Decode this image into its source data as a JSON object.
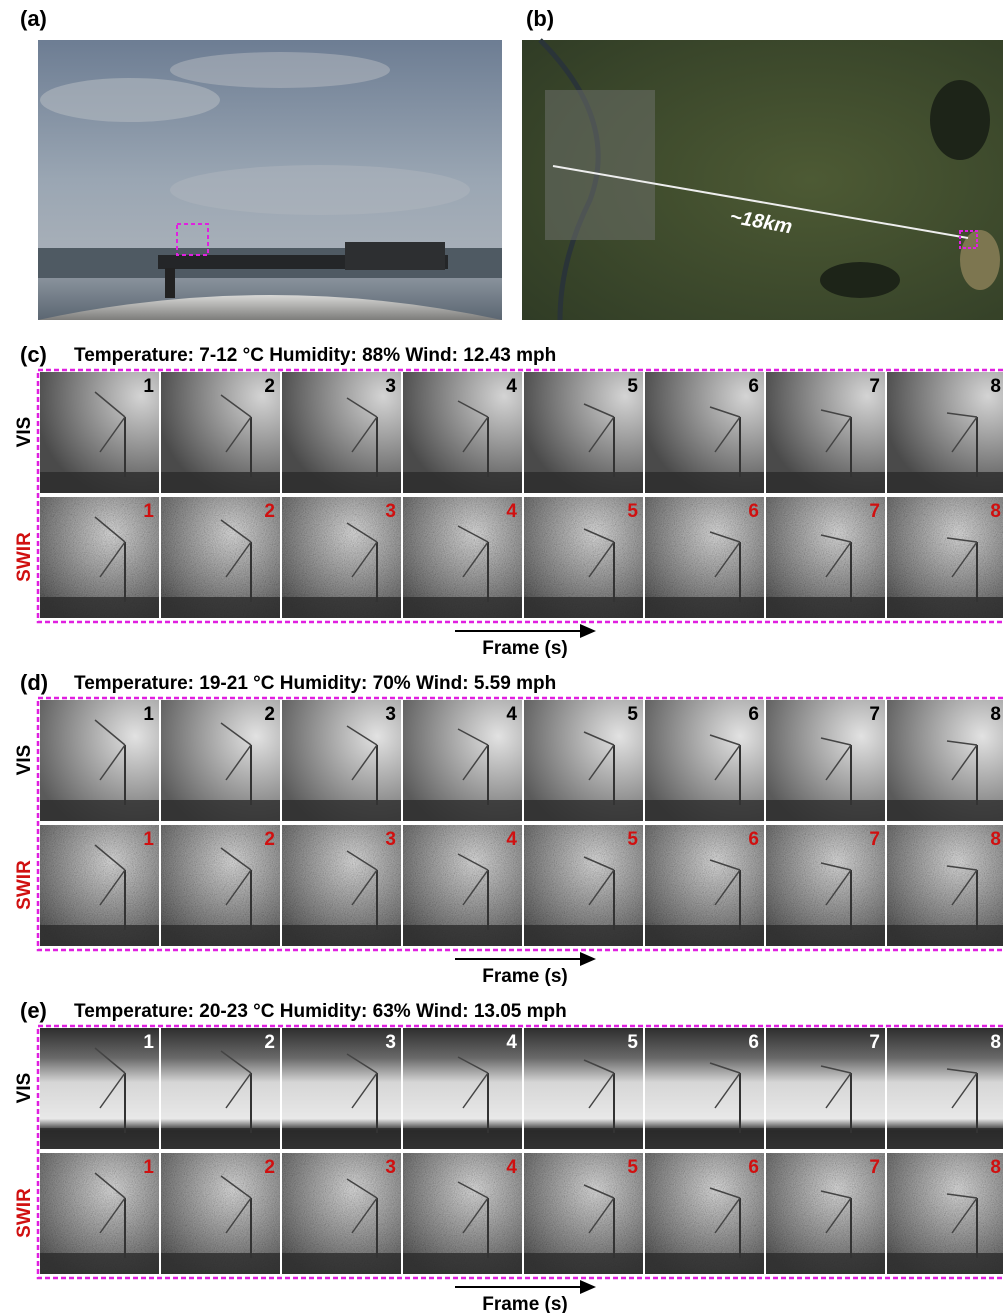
{
  "panels": [
    {
      "label": "(a)"
    },
    {
      "label": "(b)",
      "annotation": "~18km"
    }
  ],
  "sequences": [
    {
      "label": "(c)",
      "conditions": "Temperature: 7-12 °C  Humidity: 88%  Wind: 12.43 mph",
      "rows": [
        {
          "name": "VIS",
          "frames": [
            "1",
            "2",
            "3",
            "4",
            "5",
            "6",
            "7",
            "8"
          ]
        },
        {
          "name": "SWIR",
          "frames": [
            "1",
            "2",
            "3",
            "4",
            "5",
            "6",
            "7",
            "8"
          ]
        }
      ],
      "axis_label": "Frame (s)"
    },
    {
      "label": "(d)",
      "conditions": "Temperature: 19-21 °C  Humidity: 70%  Wind: 5.59 mph",
      "rows": [
        {
          "name": "VIS",
          "frames": [
            "1",
            "2",
            "3",
            "4",
            "5",
            "6",
            "7",
            "8"
          ]
        },
        {
          "name": "SWIR",
          "frames": [
            "1",
            "2",
            "3",
            "4",
            "5",
            "6",
            "7",
            "8"
          ]
        }
      ],
      "axis_label": "Frame (s)"
    },
    {
      "label": "(e)",
      "conditions": "Temperature: 20-23 °C  Humidity: 63%  Wind: 13.05 mph",
      "rows": [
        {
          "name": "VIS",
          "frames": [
            "1",
            "2",
            "3",
            "4",
            "5",
            "6",
            "7",
            "8"
          ]
        },
        {
          "name": "SWIR",
          "frames": [
            "1",
            "2",
            "3",
            "4",
            "5",
            "6",
            "7",
            "8"
          ]
        }
      ],
      "axis_label": "Frame (s)"
    }
  ]
}
